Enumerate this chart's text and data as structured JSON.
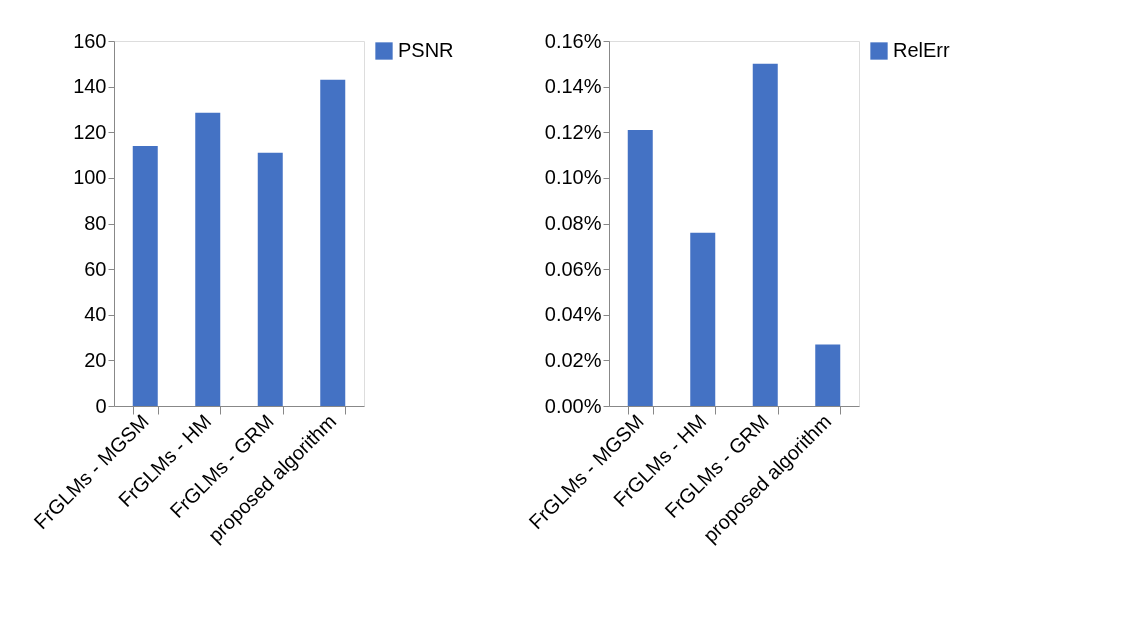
{
  "chart_data": [
    {
      "type": "bar",
      "categories": [
        "FrGLMs - MGSM",
        "FrGLMs - HM",
        "FrGLMs -  GRM",
        "proposed algorithm"
      ],
      "series": [
        {
          "name": "PSNR",
          "color": "#4472c4",
          "values": [
            114,
            128.5,
            111,
            143
          ]
        }
      ],
      "ylim": [
        0,
        160
      ],
      "yticks": [
        0,
        20,
        40,
        60,
        80,
        100,
        120,
        140,
        160
      ],
      "grid": false,
      "legend": "right"
    },
    {
      "type": "bar",
      "categories": [
        "FrGLMs - MGSM",
        "FrGLMs - HM",
        "FrGLMs -  GRM",
        "proposed algorithm"
      ],
      "series": [
        {
          "name": "RelErr",
          "color": "#4472c4",
          "values": [
            0.121,
            0.076,
            0.15,
            0.027
          ]
        }
      ],
      "ylim": [
        0,
        0.16
      ],
      "yticks": [
        {
          "value": 0,
          "label": "0.00%"
        },
        {
          "value": 0.02,
          "label": "0.02%"
        },
        {
          "value": 0.04,
          "label": "0.04%"
        },
        {
          "value": 0.06,
          "label": "0.06%"
        },
        {
          "value": 0.08,
          "label": "0.08%"
        },
        {
          "value": 0.1,
          "label": "0.10%"
        },
        {
          "value": 0.12,
          "label": "0.12%"
        },
        {
          "value": 0.14,
          "label": "0.14%"
        },
        {
          "value": 0.16,
          "label": "0.16%"
        }
      ],
      "grid": false,
      "legend": "right"
    }
  ]
}
